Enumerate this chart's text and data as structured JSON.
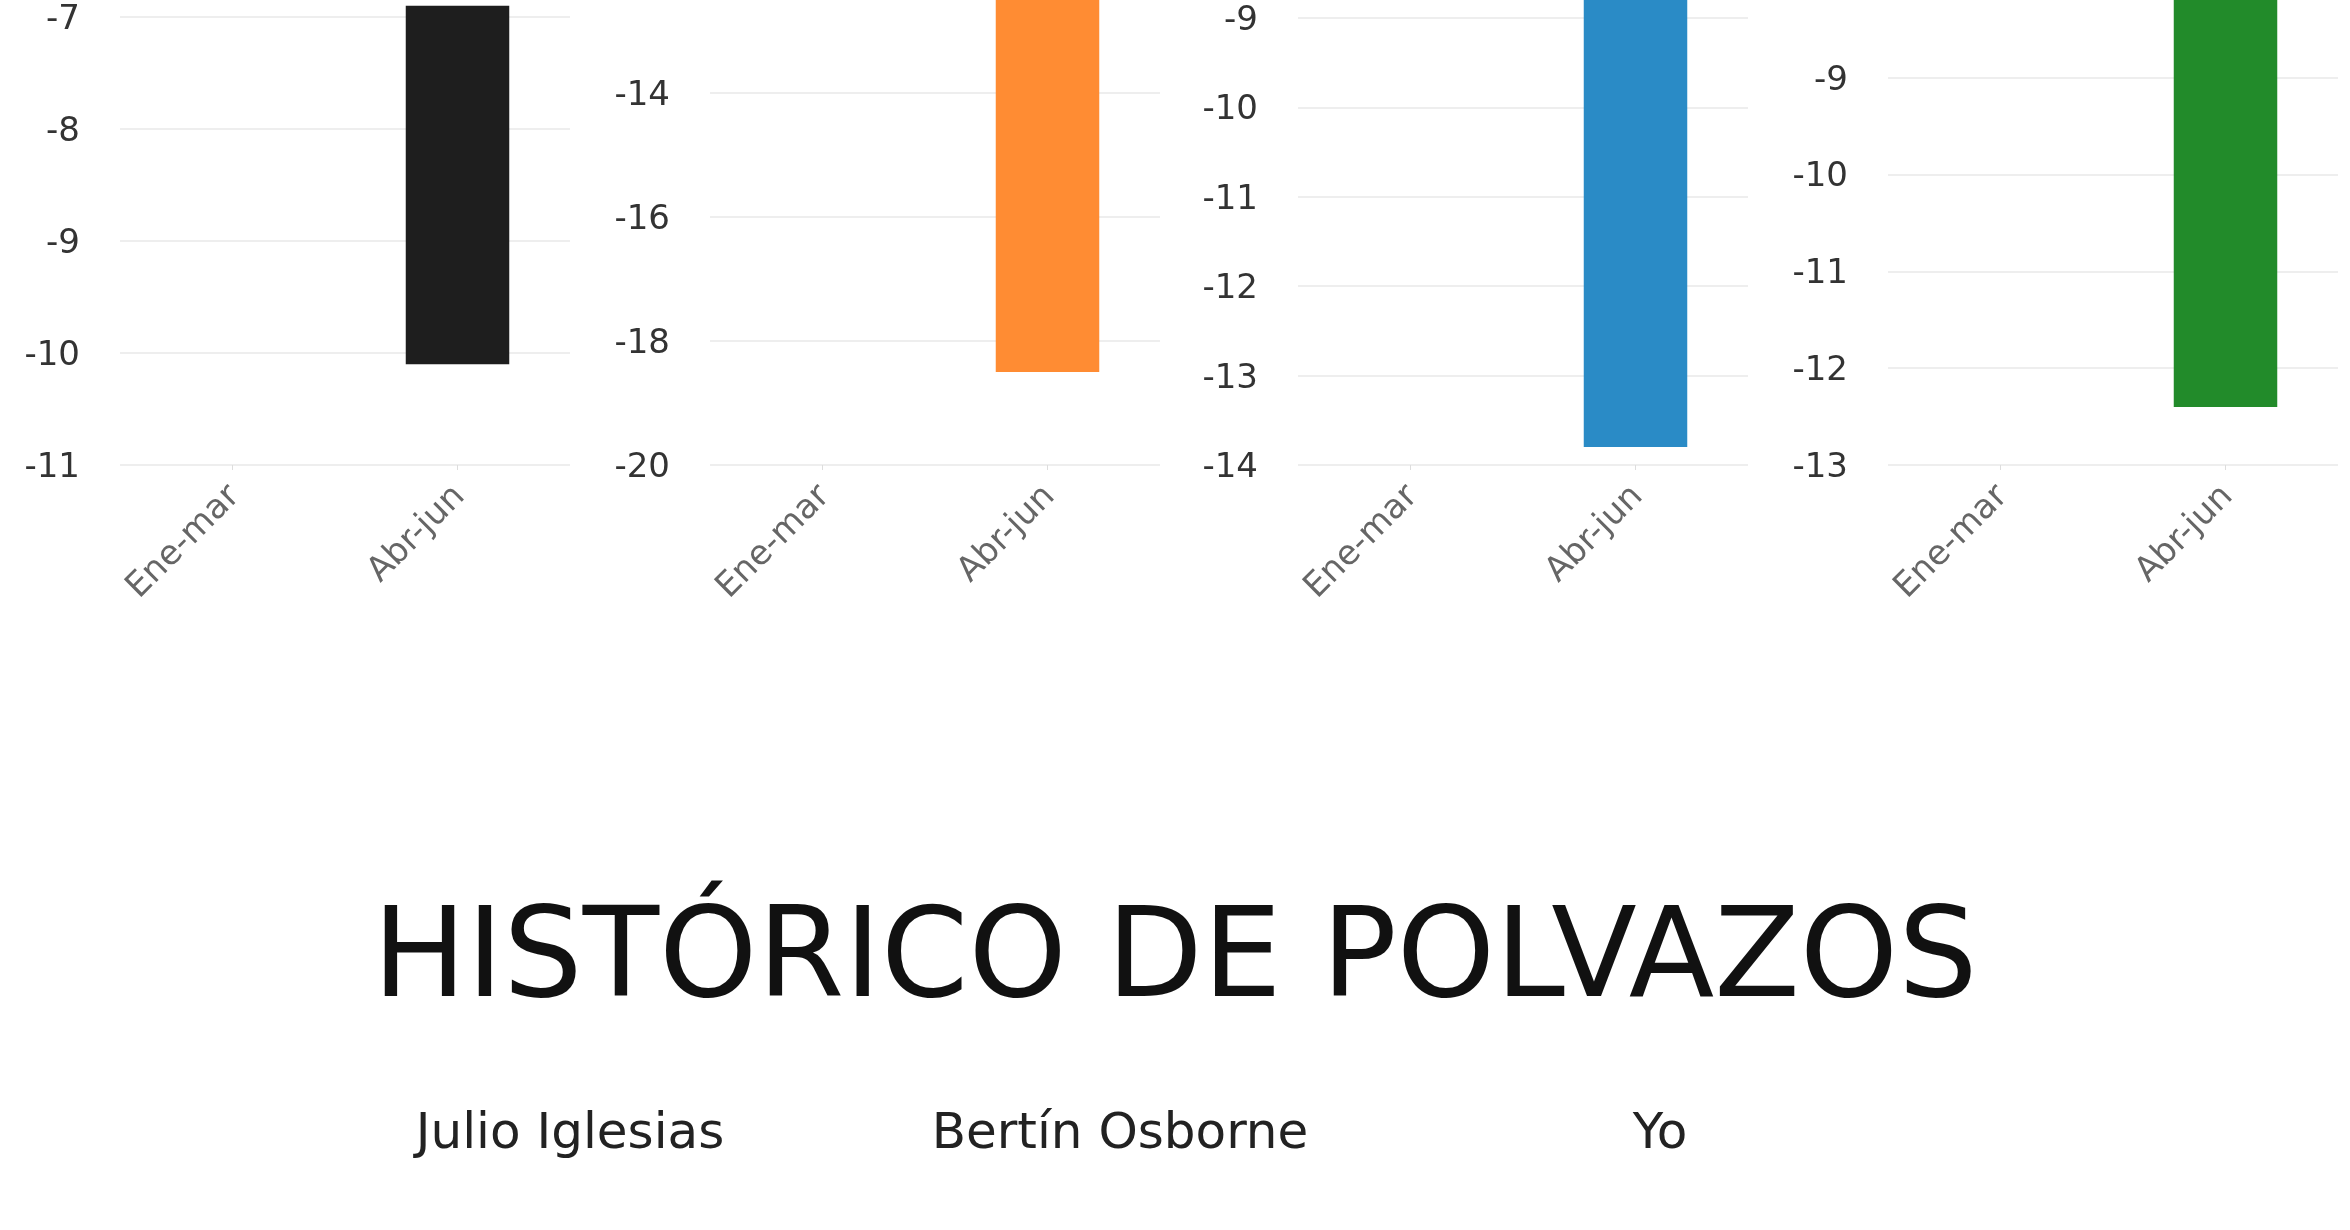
{
  "chart_data": [
    {
      "type": "bar",
      "categories": [
        "Ene-mar",
        "Abr-jun"
      ],
      "values": [
        null,
        -10.1
      ],
      "color": "#1e1e1e",
      "ylim": [
        -11,
        -6.9
      ],
      "yticks": [
        -11,
        -10,
        -9,
        -8,
        -7
      ],
      "grid": "y"
    },
    {
      "type": "bar",
      "categories": [
        "Ene-mar",
        "Abr-jun"
      ],
      "values": [
        null,
        -18.5
      ],
      "color": "#ff8c33",
      "ylim": [
        -20,
        -12.5
      ],
      "yticks": [
        -20,
        -18,
        -16,
        -14
      ],
      "grid": "y"
    },
    {
      "type": "bar",
      "categories": [
        "Ene-mar",
        "Abr-jun"
      ],
      "values": [
        null,
        -13.8
      ],
      "color": "#2a8bc6",
      "ylim": [
        -14,
        -8.8
      ],
      "yticks": [
        -14,
        -13,
        -12,
        -11,
        -10,
        -9
      ],
      "grid": "y"
    },
    {
      "type": "bar",
      "categories": [
        "Ene-mar",
        "Abr-jun"
      ],
      "values": [
        null,
        -12.4
      ],
      "color": "#228b2a",
      "ylim": [
        -13,
        -8.2
      ],
      "yticks": [
        -13,
        -12,
        -11,
        -10,
        -9
      ],
      "grid": "y"
    },
    {
      "type": "other",
      "title": "HISTÓRICO DE POLVAZOS",
      "annotations": [
        "Julio Iglesias",
        "Bertín Osborne",
        "Yo"
      ]
    }
  ]
}
